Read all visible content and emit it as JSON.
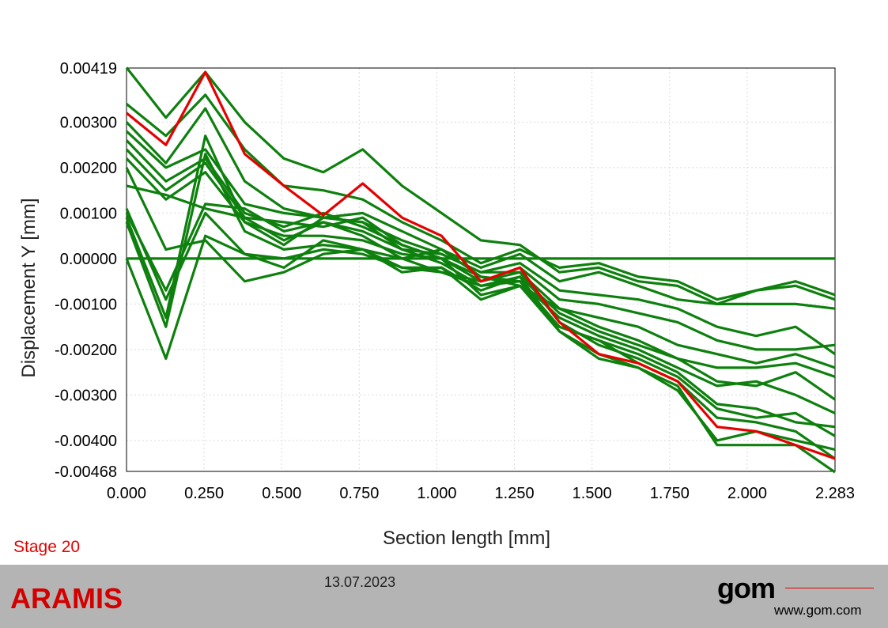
{
  "stage_label": "Stage 20",
  "footer": {
    "brand": "ARAMIS",
    "date": "13.07.2023",
    "logo": "gom",
    "url": "www.gom.com"
  },
  "colors": {
    "highlight": "#e60000",
    "series": "#0e800e",
    "brand": "#d40000"
  },
  "chart_data": {
    "type": "line",
    "xlabel": "Section length [mm]",
    "ylabel": "Displacement Y [mm]",
    "xlim": [
      0,
      2.283
    ],
    "ylim": [
      -0.00468,
      0.00419
    ],
    "x_ticks": [
      "0.000",
      "0.250",
      "0.500",
      "0.750",
      "1.000",
      "1.250",
      "1.500",
      "1.750",
      "2.000",
      "2.283"
    ],
    "y_ticks": [
      "0.00419",
      "0.00300",
      "0.00200",
      "0.00100",
      "0.00000",
      "-0.00100",
      "-0.00200",
      "-0.00300",
      "-0.00400",
      "-0.00468"
    ],
    "grid": true,
    "x": [
      0,
      0.127,
      0.254,
      0.381,
      0.507,
      0.634,
      0.761,
      0.888,
      1.015,
      1.142,
      1.268,
      1.395,
      1.522,
      1.649,
      1.776,
      1.903,
      2.029,
      2.156,
      2.283
    ],
    "highlight_series": [
      0.0032,
      0.0025,
      0.0041,
      0.0023,
      0.0016,
      0.00095,
      0.00165,
      0.0009,
      0.0005,
      -0.0005,
      -0.0002,
      -0.0014,
      -0.0021,
      -0.0023,
      -0.0027,
      -0.0037,
      -0.0038,
      -0.0041,
      -0.0044
    ],
    "series": [
      {
        "values": [
          0.0042,
          0.0031,
          0.0041,
          0.003,
          0.0022,
          0.0019,
          0.0024,
          0.0016,
          0.001,
          0.0004,
          0.0003,
          -0.0003,
          -0.0002,
          -0.0005,
          -0.0006,
          -0.001,
          -0.0007,
          -0.0005,
          -0.0008
        ]
      },
      {
        "values": [
          0.0034,
          0.0027,
          0.0036,
          0.0024,
          0.0016,
          0.0015,
          0.0013,
          0.0008,
          0.0004,
          -0.0001,
          0.0002,
          -0.0002,
          -0.0001,
          -0.0004,
          -0.0005,
          -0.0009,
          -0.0007,
          -0.0006,
          -0.0009
        ]
      },
      {
        "values": [
          0.003,
          0.0021,
          0.0033,
          0.0017,
          0.0011,
          0.0009,
          0.001,
          0.0006,
          0.0002,
          -0.0002,
          0.0001,
          -0.0005,
          -0.0003,
          -0.0006,
          -0.0009,
          -0.001,
          -0.001,
          -0.001,
          -0.0011
        ]
      },
      {
        "values": [
          0.0028,
          0.002,
          0.0024,
          0.0012,
          0.001,
          0.0009,
          0.0008,
          0.0004,
          0.0001,
          -0.0003,
          -0.0001,
          -0.0007,
          -0.0008,
          -0.0009,
          -0.0011,
          -0.0015,
          -0.0017,
          -0.0015,
          -0.0021
        ]
      },
      {
        "values": [
          0.0026,
          0.0017,
          0.0022,
          0.001,
          0.0007,
          0.001,
          0.0007,
          0.0003,
          0.0,
          -0.0005,
          -0.0002,
          -0.0009,
          -0.001,
          -0.0012,
          -0.0014,
          -0.0018,
          -0.002,
          -0.002,
          -0.0019
        ]
      },
      {
        "values": [
          0.0024,
          0.0015,
          0.0021,
          0.0009,
          0.0004,
          0.0008,
          0.0006,
          0.0002,
          0.0001,
          -0.0003,
          -0.0003,
          -0.0011,
          -0.0013,
          -0.0015,
          -0.0019,
          -0.0021,
          -0.0023,
          -0.0021,
          -0.0024
        ]
      },
      {
        "values": [
          0.0022,
          0.0013,
          0.0019,
          0.0008,
          0.0003,
          0.0009,
          0.0008,
          0.0002,
          -0.0001,
          -0.0006,
          -0.0004,
          -0.0012,
          -0.0016,
          -0.0019,
          -0.0022,
          -0.0024,
          -0.0024,
          -0.0023,
          -0.0026
        ]
      },
      {
        "values": [
          0.0016,
          0.0014,
          0.0011,
          0.0009,
          0.0008,
          0.0007,
          0.0009,
          0.0003,
          0.0,
          -0.0008,
          -0.0006,
          -0.0011,
          -0.0015,
          -0.0018,
          -0.0022,
          -0.0027,
          -0.0028,
          -0.0025,
          -0.0031
        ]
      },
      {
        "values": [
          0.001,
          -0.0007,
          0.0012,
          0.0011,
          0.0006,
          0.0008,
          0.0005,
          0.0,
          0.0002,
          -0.0004,
          -0.0005,
          -0.0013,
          -0.0017,
          -0.002,
          -0.0024,
          -0.0028,
          -0.0027,
          -0.003,
          -0.0034
        ]
      },
      {
        "values": [
          0.0009,
          -0.0013,
          0.0027,
          0.0008,
          0.0005,
          0.0005,
          0.0004,
          0.0001,
          0.0,
          -0.0004,
          -0.0006,
          -0.0015,
          -0.0018,
          -0.0021,
          -0.0025,
          -0.0032,
          -0.0033,
          -0.0036,
          -0.0037
        ]
      },
      {
        "values": [
          0.0008,
          -0.0015,
          0.0023,
          0.0006,
          0.0002,
          0.0003,
          0.0002,
          0.0,
          -0.0003,
          -0.0005,
          -0.0003,
          -0.0014,
          -0.0019,
          -0.0022,
          -0.0026,
          -0.0033,
          -0.0035,
          -0.0034,
          -0.0039
        ]
      },
      {
        "values": [
          0.0,
          -0.0022,
          0.0005,
          0.0001,
          0.0,
          0.0002,
          0.0001,
          -0.0002,
          -0.0002,
          -0.0007,
          -0.0004,
          -0.0016,
          -0.0021,
          -0.0024,
          -0.0029,
          -0.004,
          -0.0038,
          -0.004,
          -0.0042
        ]
      },
      {
        "values": [
          0.002,
          0.0002,
          0.0004,
          -0.0005,
          -0.0003,
          0.0001,
          0.0002,
          -0.0003,
          -0.0002,
          -0.0009,
          -0.0006,
          -0.0016,
          -0.0022,
          -0.0024,
          -0.0028,
          -0.0041,
          -0.0041,
          -0.0041,
          -0.0047
        ]
      },
      {
        "values": [
          0.0011,
          -0.0009,
          0.001,
          0.0001,
          -0.0002,
          0.0004,
          0.0002,
          -0.0002,
          -0.0003,
          -0.0006,
          -0.0005,
          -0.0015,
          -0.0018,
          -0.0023,
          -0.0027,
          -0.0035,
          -0.0036,
          -0.0038,
          -0.0044
        ]
      },
      {
        "values": [
          0.0,
          0.0,
          0.0,
          0.0,
          0.0,
          0.0,
          0.0,
          0.0,
          0.0,
          0.0,
          0.0,
          0.0,
          0.0,
          0.0,
          0.0,
          0.0,
          0.0,
          0.0,
          0.0
        ]
      }
    ]
  }
}
